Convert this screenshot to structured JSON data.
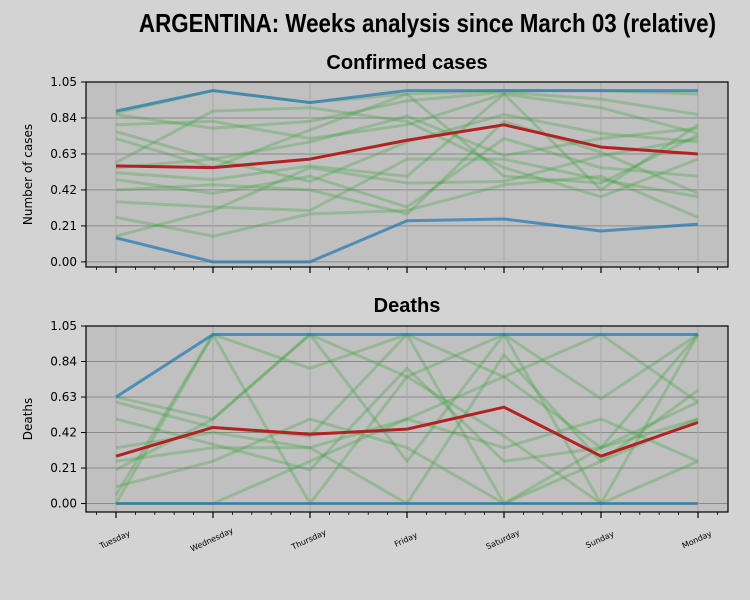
{
  "figure": {
    "title": "ARGENTINA: Weeks analysis since March 03 (relative)",
    "background": "#d3d3d3",
    "axes_background": "#c0c0c0"
  },
  "chart_data": [
    {
      "type": "line",
      "title": "Confirmed cases",
      "xlabel": "",
      "ylabel": "Number of cases",
      "categories": [
        "Tuesday",
        "Wednesday",
        "Thursday",
        "Friday",
        "Saturday",
        "Sunday",
        "Monday"
      ],
      "yticks": [
        "0.00",
        "0.21",
        "0.42",
        "0.63",
        "0.84",
        "1.05"
      ],
      "ylim": [
        -0.03,
        1.05
      ],
      "grid": true,
      "show_xtick_labels": false,
      "weeks_color": "#2ca02c",
      "weeks": [
        [
          0.87,
          1.0,
          0.93,
          0.98,
          1.0,
          1.0,
          0.98
        ],
        [
          0.86,
          0.78,
          0.82,
          0.94,
          0.99,
          0.95,
          0.86
        ],
        [
          0.8,
          0.82,
          0.72,
          0.8,
          0.98,
          0.9,
          0.75
        ],
        [
          0.76,
          0.6,
          0.7,
          0.85,
          0.62,
          0.72,
          0.78
        ],
        [
          0.72,
          0.55,
          0.77,
          0.98,
          0.5,
          0.46,
          0.74
        ],
        [
          0.55,
          0.6,
          0.47,
          0.7,
          0.86,
          0.75,
          0.7
        ],
        [
          0.52,
          0.48,
          0.56,
          0.5,
          0.98,
          0.42,
          0.8
        ],
        [
          0.48,
          0.4,
          0.5,
          0.32,
          0.72,
          0.55,
          0.5
        ],
        [
          0.42,
          0.45,
          0.42,
          0.28,
          0.82,
          0.64,
          0.4
        ],
        [
          0.35,
          0.32,
          0.3,
          0.6,
          0.6,
          0.48,
          0.38
        ],
        [
          0.26,
          0.15,
          0.28,
          0.3,
          0.45,
          0.5,
          0.26
        ],
        [
          0.15,
          0.3,
          0.55,
          0.46,
          0.47,
          0.62,
          0.72
        ],
        [
          0.58,
          0.88,
          0.9,
          0.82,
          0.55,
          0.38,
          0.6
        ]
      ],
      "bounds_color": "#1f77b4",
      "bounds": [
        [
          0.88,
          1.0,
          0.93,
          1.0,
          1.0,
          1.0,
          1.0
        ],
        [
          0.14,
          0.0,
          0.0,
          0.24,
          0.25,
          0.18,
          0.22
        ]
      ],
      "mean_color": "#b22222",
      "mean": [
        0.56,
        0.55,
        0.6,
        0.71,
        0.8,
        0.67,
        0.63
      ]
    },
    {
      "type": "line",
      "title": "Deaths",
      "xlabel": "",
      "ylabel": "Deaths",
      "categories": [
        "Tuesday",
        "Wednesday",
        "Thursday",
        "Friday",
        "Saturday",
        "Sunday",
        "Monday"
      ],
      "yticks": [
        "0.00",
        "0.21",
        "0.42",
        "0.63",
        "0.84",
        "1.05"
      ],
      "ylim": [
        -0.05,
        1.05
      ],
      "grid": true,
      "show_xtick_labels": true,
      "weeks_color": "#2ca02c",
      "weeks": [
        [
          0.0,
          1.0,
          0.8,
          1.0,
          0.75,
          1.0,
          0.6
        ],
        [
          0.63,
          0.5,
          1.0,
          0.25,
          1.0,
          0.0,
          1.0
        ],
        [
          0.5,
          0.35,
          0.2,
          0.8,
          0.25,
          0.33,
          0.5
        ],
        [
          0.33,
          0.42,
          0.33,
          0.0,
          0.88,
          0.25,
          0.67
        ],
        [
          0.2,
          0.5,
          1.0,
          0.75,
          0.4,
          0.0,
          0.25
        ],
        [
          0.1,
          0.25,
          0.5,
          0.33,
          0.0,
          0.33,
          1.0
        ],
        [
          0.25,
          0.33,
          0.33,
          0.5,
          0.33,
          0.5,
          0.25
        ],
        [
          0.0,
          0.0,
          0.25,
          0.5,
          0.75,
          0.33,
          0.6
        ],
        [
          0.6,
          0.45,
          0.4,
          1.0,
          0.0,
          0.25,
          0.5
        ],
        [
          0.05,
          1.0,
          0.0,
          0.75,
          1.0,
          0.62,
          1.0
        ]
      ],
      "bounds_color": "#1f77b4",
      "bounds": [
        [
          0.63,
          1.0,
          1.0,
          1.0,
          1.0,
          1.0,
          1.0
        ],
        [
          0.0,
          0.0,
          0.0,
          0.0,
          0.0,
          0.0,
          0.0
        ]
      ],
      "mean_color": "#b22222",
      "mean": [
        0.28,
        0.45,
        0.41,
        0.44,
        0.57,
        0.28,
        0.48
      ]
    }
  ]
}
